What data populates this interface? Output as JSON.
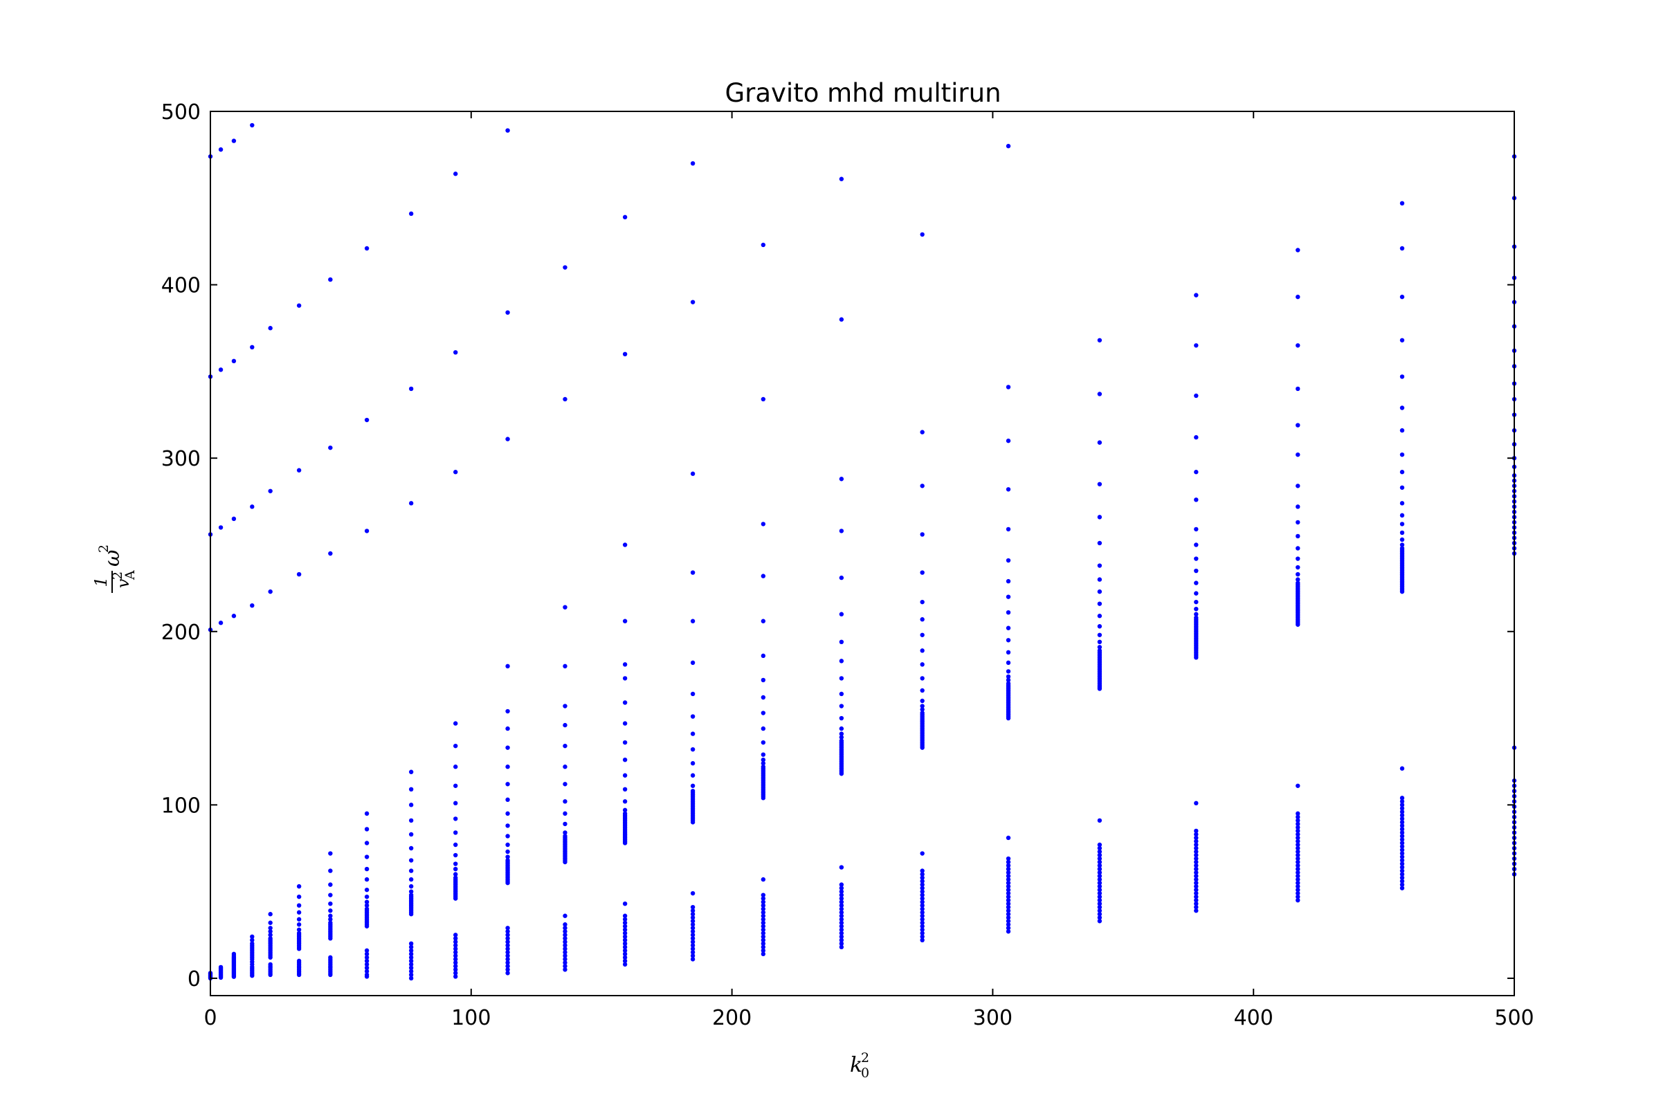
{
  "chart_data": {
    "type": "scatter",
    "title": "Gravito mhd multirun",
    "xlabel": {
      "base": "k",
      "sub": "0",
      "sup": "2"
    },
    "ylabel": {
      "frac_numerator": "1",
      "frac_denominator_base": "v",
      "frac_denominator_sub": "A",
      "frac_denominator_sup": "2",
      "base": "ω",
      "sup": "2"
    },
    "xlim": [
      0,
      500
    ],
    "ylim": [
      -10,
      500
    ],
    "xticks": [
      0,
      100,
      200,
      300,
      400,
      500
    ],
    "yticks": [
      0,
      100,
      200,
      300,
      400,
      500
    ],
    "xtick_labels": [
      "0",
      "100",
      "200",
      "300",
      "400",
      "500"
    ],
    "ytick_labels": [
      "0",
      "100",
      "200",
      "300",
      "400",
      "500"
    ],
    "grid": false,
    "marker_color": "#0000ff",
    "columns": [
      {
        "x": 0,
        "points": [
          0,
          0.5,
          1,
          1.5,
          2,
          2.5,
          3,
          201,
          256,
          347,
          474
        ]
      },
      {
        "x": 4,
        "points": [
          0.4,
          1,
          1.6,
          2.2,
          2.8,
          3.4,
          4,
          4.6,
          5.2,
          5.8,
          6.4,
          205,
          260,
          351,
          478
        ]
      },
      {
        "x": 9,
        "points": [
          0.9,
          1.7,
          2.5,
          3.3,
          4.1,
          4.9,
          5.7,
          6.5,
          7.3,
          8.1,
          8.9,
          9.7,
          10.5,
          11.3,
          12.1,
          13,
          14,
          209,
          265,
          356,
          483
        ]
      },
      {
        "x": 16,
        "points": [
          1.5,
          2.5,
          3.5,
          4.5,
          5.5,
          6.5,
          8,
          9.5,
          11,
          12,
          13,
          14,
          15,
          16,
          17,
          18,
          19,
          20,
          22,
          24,
          215,
          272,
          364,
          492
        ]
      },
      {
        "x": 23,
        "points": [
          2,
          3,
          4,
          5,
          6,
          7,
          8,
          12,
          13,
          14,
          15,
          16,
          17,
          18,
          19,
          20,
          21,
          22,
          23,
          25,
          27,
          29,
          32,
          37,
          223,
          281,
          375
        ]
      },
      {
        "x": 34,
        "points": [
          2,
          3,
          4,
          5,
          6,
          7,
          8,
          9,
          10,
          17,
          18,
          19,
          20,
          21,
          22,
          23,
          24,
          25,
          26,
          28,
          31,
          34,
          38,
          42,
          47,
          53,
          233,
          293,
          388
        ]
      },
      {
        "x": 46,
        "points": [
          2,
          3,
          4,
          5,
          6,
          7,
          8,
          9,
          10,
          11,
          12,
          23,
          24,
          25,
          26,
          27,
          28,
          29,
          30,
          31,
          32,
          34,
          36,
          39,
          43,
          48,
          54,
          62,
          72,
          245,
          306,
          403
        ]
      },
      {
        "x": 60,
        "points": [
          1,
          2,
          4,
          6,
          8,
          10,
          12,
          14,
          16,
          30,
          31,
          32,
          33,
          34,
          35,
          36,
          37,
          38,
          39,
          40,
          42,
          44,
          47,
          51,
          57,
          63,
          70,
          78,
          86,
          95,
          258,
          322,
          421
        ]
      },
      {
        "x": 77,
        "points": [
          0,
          2,
          4,
          6,
          8,
          10,
          12,
          14,
          16,
          18,
          20,
          37,
          38,
          39,
          40,
          41,
          42,
          43,
          44,
          45,
          46,
          47,
          48,
          50,
          53,
          57,
          62,
          68,
          75,
          83,
          91,
          100,
          109,
          119,
          274,
          340,
          441
        ]
      },
      {
        "x": 94,
        "points": [
          1,
          3,
          5,
          7,
          9,
          11,
          13,
          15,
          17,
          19,
          21,
          23,
          25,
          46,
          47,
          48,
          49,
          50,
          51,
          52,
          53,
          54,
          55,
          56,
          57,
          58,
          60,
          63,
          66,
          71,
          77,
          84,
          92,
          101,
          111,
          122,
          134,
          147,
          292,
          361,
          464
        ]
      },
      {
        "x": 114,
        "points": [
          3,
          5,
          7,
          9,
          11,
          13,
          15,
          17,
          19,
          21,
          23,
          25,
          27,
          29,
          55,
          56,
          57,
          58,
          59,
          60,
          61,
          62,
          63,
          64,
          65,
          66,
          67,
          68,
          70,
          73,
          77,
          82,
          88,
          95,
          103,
          112,
          122,
          133,
          144,
          154,
          180,
          311,
          384,
          489
        ]
      },
      {
        "x": 136,
        "points": [
          5,
          7,
          9,
          11,
          13,
          15,
          17,
          19,
          21,
          23,
          25,
          27,
          29,
          31,
          36,
          67,
          68,
          69,
          70,
          71,
          72,
          73,
          74,
          75,
          76,
          77,
          78,
          79,
          80,
          81,
          82,
          84,
          89,
          95,
          102,
          112,
          122,
          134,
          146,
          157,
          180,
          214,
          334,
          410
        ]
      },
      {
        "x": 159,
        "points": [
          8,
          10,
          12,
          14,
          16,
          18,
          20,
          22,
          24,
          26,
          28,
          30,
          32,
          34,
          36,
          43,
          78,
          79,
          80,
          81,
          82,
          83,
          84,
          85,
          86,
          87,
          88,
          89,
          90,
          91,
          92,
          93,
          94,
          95,
          97,
          102,
          109,
          117,
          126,
          136,
          147,
          159,
          173,
          181,
          206,
          250,
          360,
          439
        ]
      },
      {
        "x": 185,
        "points": [
          11,
          13,
          15,
          17,
          19,
          21,
          23,
          25,
          27,
          29,
          31,
          33,
          35,
          37,
          39,
          41,
          49,
          90,
          91,
          92,
          93,
          94,
          95,
          96,
          97,
          98,
          99,
          100,
          101,
          102,
          103,
          104,
          105,
          106,
          107,
          108,
          111,
          117,
          124,
          132,
          141,
          151,
          164,
          182,
          206,
          234,
          291,
          390,
          470
        ]
      },
      {
        "x": 212,
        "points": [
          14,
          16,
          18,
          20,
          22,
          24,
          26,
          28,
          30,
          32,
          34,
          36,
          38,
          40,
          42,
          44,
          46,
          48,
          57,
          104,
          105,
          106,
          107,
          108,
          109,
          110,
          111,
          112,
          113,
          114,
          115,
          116,
          117,
          118,
          119,
          120,
          121,
          122,
          124,
          126,
          129,
          136,
          144,
          153,
          162,
          172,
          186,
          206,
          232,
          262,
          334,
          423
        ]
      },
      {
        "x": 242,
        "points": [
          18,
          20,
          22,
          24,
          26,
          28,
          30,
          32,
          34,
          36,
          38,
          40,
          42,
          44,
          46,
          48,
          50,
          52,
          54,
          64,
          118,
          119,
          120,
          121,
          122,
          123,
          124,
          125,
          126,
          127,
          128,
          129,
          130,
          131,
          132,
          133,
          134,
          135,
          136,
          137,
          139,
          141,
          144,
          150,
          157,
          164,
          173,
          183,
          194,
          210,
          231,
          258,
          288,
          380,
          461
        ]
      },
      {
        "x": 273,
        "points": [
          22,
          24,
          26,
          28,
          30,
          32,
          34,
          36,
          38,
          40,
          42,
          44,
          46,
          48,
          50,
          52,
          54,
          56,
          58,
          60,
          62,
          72,
          133,
          134,
          135,
          136,
          137,
          138,
          139,
          140,
          141,
          142,
          143,
          144,
          145,
          146,
          147,
          148,
          149,
          150,
          151,
          152,
          153,
          155,
          157,
          160,
          166,
          173,
          181,
          189,
          198,
          207,
          217,
          234,
          256,
          284,
          315,
          429
        ]
      },
      {
        "x": 306,
        "points": [
          27,
          29,
          31,
          33,
          35,
          37,
          39,
          41,
          43,
          45,
          47,
          49,
          51,
          53,
          55,
          57,
          59,
          61,
          63,
          65,
          67,
          69,
          81,
          150,
          151,
          152,
          153,
          154,
          155,
          156,
          157,
          158,
          159,
          160,
          161,
          162,
          163,
          164,
          165,
          166,
          167,
          168,
          169,
          170,
          172,
          174,
          177,
          182,
          188,
          195,
          202,
          211,
          220,
          229,
          241,
          259,
          282,
          310,
          341,
          480
        ]
      },
      {
        "x": 341,
        "points": [
          33,
          35,
          37,
          39,
          41,
          43,
          45,
          47,
          49,
          51,
          53,
          55,
          57,
          59,
          61,
          63,
          65,
          67,
          69,
          71,
          73,
          75,
          77,
          91,
          167,
          168,
          169,
          170,
          171,
          172,
          173,
          174,
          175,
          176,
          177,
          178,
          179,
          180,
          181,
          182,
          183,
          184,
          185,
          186,
          187,
          188,
          189,
          191,
          194,
          198,
          203,
          209,
          216,
          223,
          230,
          238,
          251,
          266,
          285,
          309,
          337,
          368
        ]
      },
      {
        "x": 378,
        "points": [
          39,
          41,
          43,
          45,
          47,
          49,
          51,
          53,
          55,
          57,
          59,
          61,
          63,
          65,
          67,
          69,
          71,
          73,
          75,
          77,
          79,
          81,
          83,
          85,
          101,
          185,
          186,
          187,
          188,
          189,
          190,
          191,
          192,
          193,
          194,
          195,
          196,
          197,
          198,
          199,
          200,
          201,
          202,
          203,
          204,
          205,
          206,
          207,
          208,
          210,
          213,
          217,
          222,
          228,
          235,
          242,
          250,
          259,
          276,
          292,
          312,
          336,
          365,
          394
        ]
      },
      {
        "x": 417,
        "points": [
          45,
          47,
          49,
          51,
          53,
          55,
          57,
          59,
          61,
          63,
          65,
          67,
          69,
          71,
          73,
          75,
          77,
          79,
          81,
          83,
          85,
          87,
          89,
          91,
          93,
          95,
          111,
          204,
          205,
          206,
          207,
          208,
          209,
          210,
          211,
          212,
          213,
          214,
          215,
          216,
          217,
          218,
          219,
          220,
          221,
          222,
          223,
          224,
          225,
          226,
          227,
          228,
          230,
          233,
          237,
          242,
          248,
          255,
          263,
          272,
          284,
          302,
          319,
          340,
          365,
          393,
          420
        ]
      },
      {
        "x": 457,
        "points": [
          52,
          54,
          56,
          58,
          60,
          62,
          64,
          66,
          68,
          70,
          72,
          74,
          76,
          78,
          80,
          82,
          84,
          86,
          88,
          90,
          92,
          94,
          96,
          98,
          100,
          102,
          104,
          121,
          223,
          224,
          225,
          226,
          227,
          228,
          229,
          230,
          231,
          232,
          233,
          234,
          235,
          236,
          237,
          238,
          239,
          240,
          241,
          242,
          243,
          244,
          245,
          246,
          247,
          248,
          250,
          253,
          257,
          262,
          267,
          274,
          283,
          292,
          302,
          316,
          329,
          347,
          368,
          393,
          421,
          447
        ]
      },
      {
        "x": 500,
        "points": [
          60,
          63,
          66,
          69,
          72,
          75,
          78,
          81,
          84,
          87,
          90,
          93,
          96,
          99,
          102,
          105,
          108,
          111,
          114,
          133,
          245,
          248,
          251,
          254,
          257,
          260,
          263,
          266,
          269,
          272,
          275,
          278,
          281,
          284,
          287,
          290,
          295,
          300,
          308,
          316,
          325,
          334,
          343,
          353,
          362,
          376,
          390,
          404,
          422,
          450,
          474
        ]
      }
    ]
  }
}
